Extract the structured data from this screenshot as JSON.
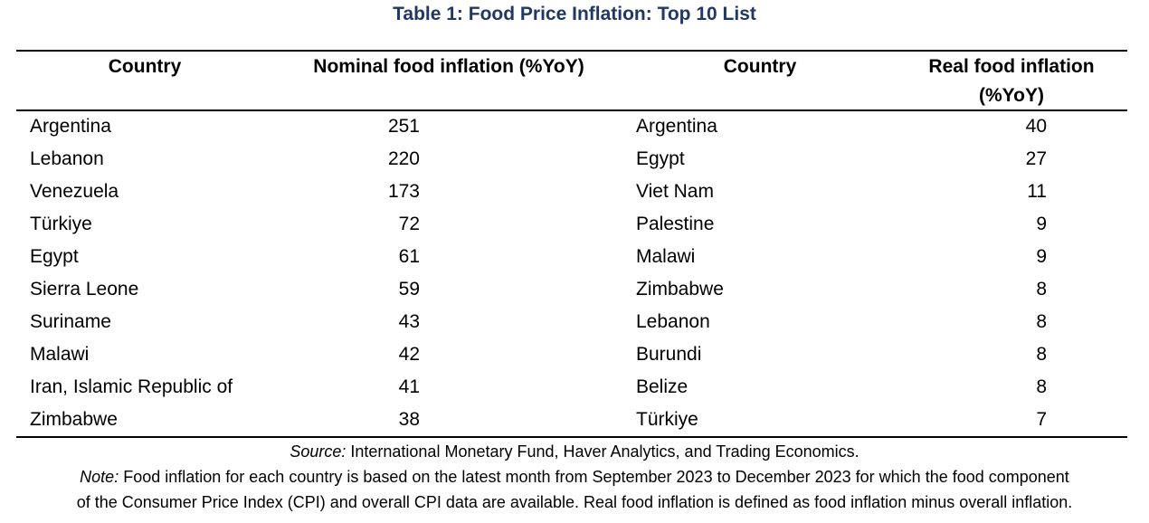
{
  "title": "Table 1: Food Price Inflation: Top 10 List",
  "headers": {
    "country_left": "Country",
    "nominal": "Nominal food inflation (%YoY)",
    "country_right": "Country",
    "real_line1": "Real food inflation",
    "real_line2": "(%YoY)"
  },
  "nominal_rows": [
    {
      "country": "Argentina",
      "value": "251"
    },
    {
      "country": "Lebanon",
      "value": "220"
    },
    {
      "country": "Venezuela",
      "value": "173"
    },
    {
      "country": "Türkiye",
      "value": "72"
    },
    {
      "country": "Egypt",
      "value": "61"
    },
    {
      "country": "Sierra Leone",
      "value": "59"
    },
    {
      "country": "Suriname",
      "value": "43"
    },
    {
      "country": "Malawi",
      "value": "42"
    },
    {
      "country": "Iran, Islamic Republic of",
      "value": "41"
    },
    {
      "country": "Zimbabwe",
      "value": "38"
    }
  ],
  "real_rows": [
    {
      "country": "Argentina",
      "value": "40"
    },
    {
      "country": "Egypt",
      "value": "27"
    },
    {
      "country": "Viet Nam",
      "value": "11"
    },
    {
      "country": "Palestine",
      "value": "9"
    },
    {
      "country": "Malawi",
      "value": "9"
    },
    {
      "country": "Zimbabwe",
      "value": "8"
    },
    {
      "country": "Lebanon",
      "value": "8"
    },
    {
      "country": "Burundi",
      "value": "8"
    },
    {
      "country": "Belize",
      "value": "8"
    },
    {
      "country": "Türkiye",
      "value": "7"
    }
  ],
  "source": {
    "label": "Source:",
    "text": " International Monetary Fund, Haver Analytics, and Trading Economics."
  },
  "note": {
    "label": "Note:",
    "text_line1": " Food inflation for each country is based on the latest month from September 2023 to December 2023 for which the food component",
    "text_line2": "of the Consumer Price Index (CPI) and overall CPI data are available. Real food inflation is defined as food inflation minus overall inflation."
  },
  "colors": {
    "title": "#1f3864"
  }
}
